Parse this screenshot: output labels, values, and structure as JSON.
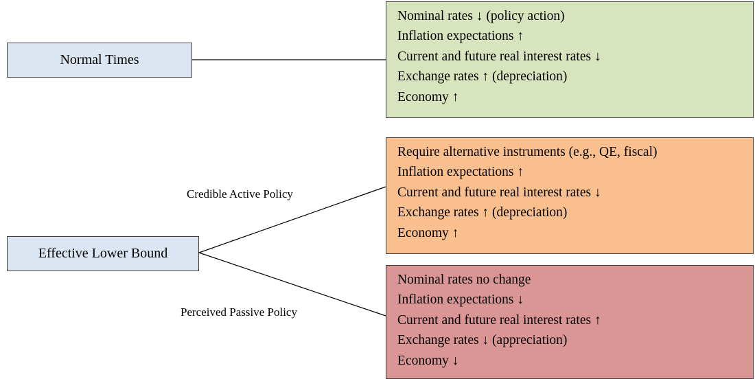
{
  "nodes": [
    {
      "label": "Normal Times"
    },
    {
      "label": "Effective Lower Bound"
    }
  ],
  "edges": [
    {
      "label": "Credible Active Policy"
    },
    {
      "label": "Perceived Passive Policy"
    }
  ],
  "outcomes": [
    {
      "lines": [
        "Nominal rates ↓ (policy action)",
        "Inflation expectations ↑",
        "Current and future real interest rates ↓",
        "Exchange rates ↑ (depreciation)",
        "Economy ↑"
      ]
    },
    {
      "lines": [
        "Require alternative instruments (e.g., QE, fiscal)",
        "Inflation expectations ↑",
        "Current and future real interest rates ↓",
        "Exchange rates ↑ (depreciation)",
        "Economy ↑"
      ]
    },
    {
      "lines": [
        "Nominal rates no change",
        "Inflation expectations ↓",
        "Current and future real interest rates ↑",
        "Exchange rates ↓ (appreciation)",
        "Economy ↓"
      ]
    }
  ]
}
